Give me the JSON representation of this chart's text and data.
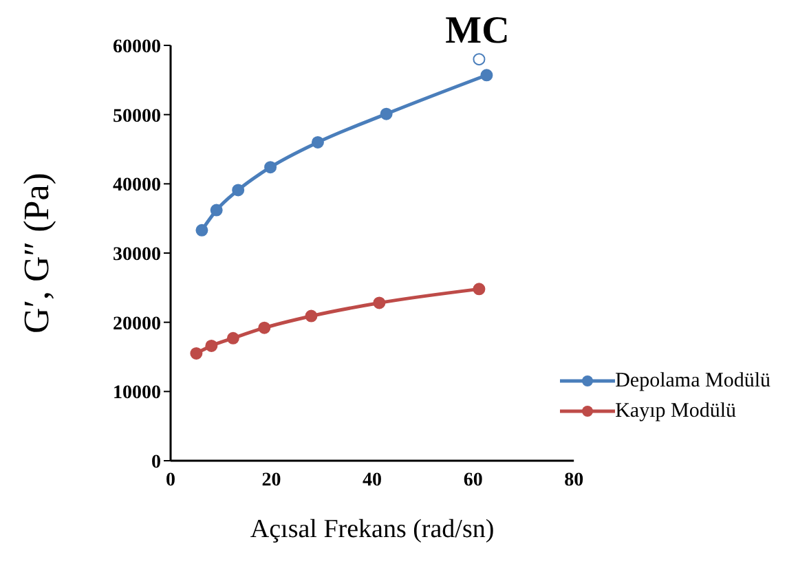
{
  "chart_data": {
    "type": "line",
    "title": "MC",
    "xlabel": "Açısal Frekans (rad/sn)",
    "ylabel": "G′, G″ (Pa)",
    "xlim": [
      0,
      80
    ],
    "xticks": [
      0,
      20,
      40,
      60,
      80
    ],
    "ylim": [
      0,
      60000
    ],
    "yticks": [
      0,
      10000,
      20000,
      30000,
      40000,
      50000,
      60000
    ],
    "grid": false,
    "legend": "bottom right",
    "marker": "circle",
    "line_style": "solid",
    "series": [
      {
        "name": "Depolama Modülü",
        "color": "#4a7ebb",
        "x": [
          6.2,
          9.1,
          13.4,
          19.8,
          29.2,
          42.8,
          62.7
        ],
        "values": [
          33300,
          36200,
          39100,
          42400,
          46000,
          50100,
          55700
        ]
      },
      {
        "name": "Kayıp Modülü",
        "color": "#be4b48",
        "x": [
          5.1,
          8.1,
          12.4,
          18.6,
          27.9,
          41.4,
          61.2
        ],
        "values": [
          15500,
          16600,
          17700,
          19200,
          20900,
          22800,
          24800
        ]
      },
      {
        "type": "scatter",
        "color": "#4a7ebb",
        "x": [
          61.2
        ],
        "values": [
          58000
        ]
      }
    ]
  }
}
